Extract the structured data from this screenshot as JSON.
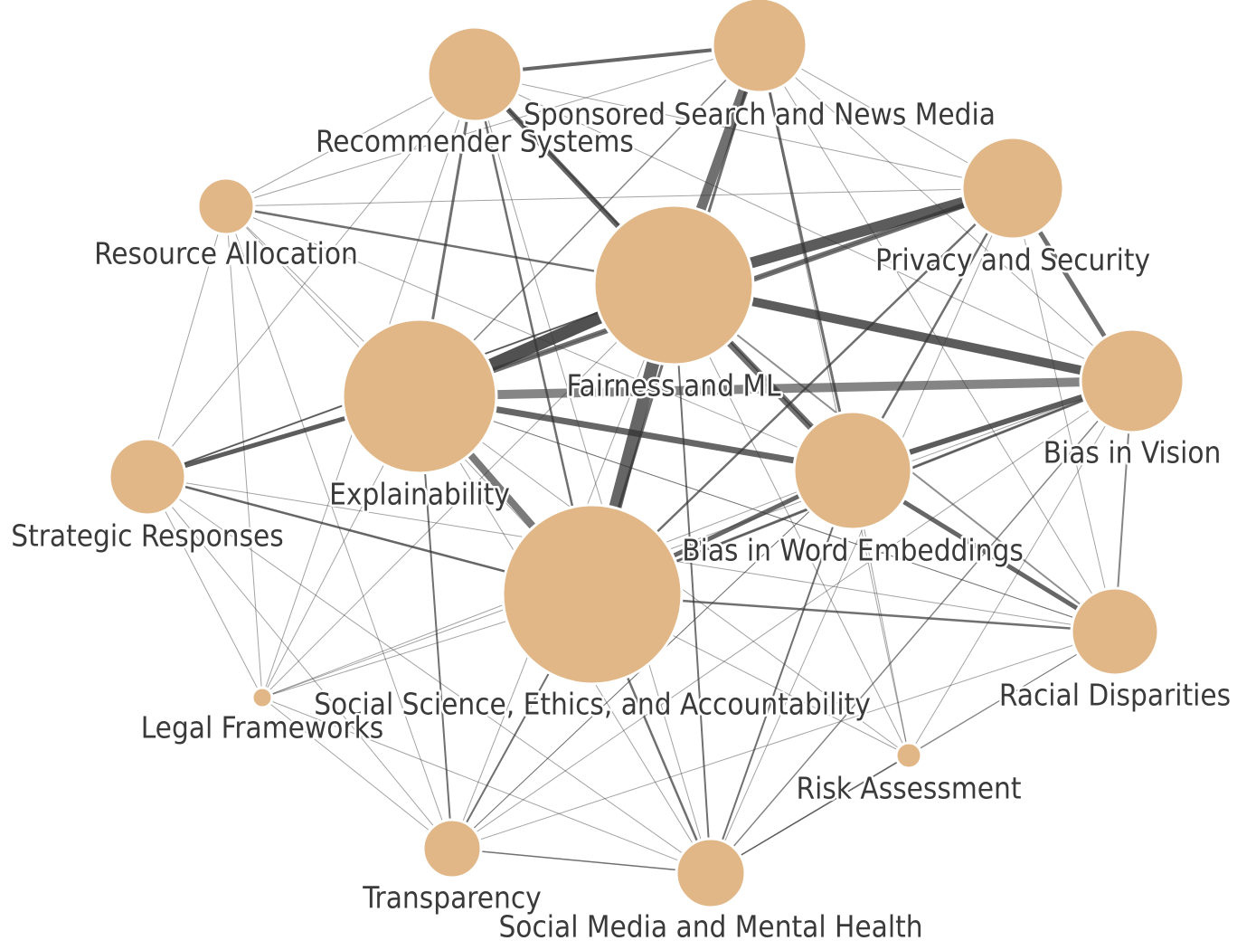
{
  "colors": {
    "node_fill": "#e2b788",
    "edge_color": "#333333",
    "background": "#ffffff"
  },
  "nodes": [
    {
      "id": "fairness",
      "label": "Fairness and ML"
    },
    {
      "id": "social",
      "label": "Social Science, Ethics, and Accountability"
    },
    {
      "id": "explain",
      "label": "Explainability"
    },
    {
      "id": "wordemb",
      "label": "Bias in Word Embeddings"
    },
    {
      "id": "vision",
      "label": "Bias in Vision"
    },
    {
      "id": "privacy",
      "label": "Privacy and Security"
    },
    {
      "id": "sponsored",
      "label": "Sponsored Search and News Media"
    },
    {
      "id": "recommender",
      "label": "Recommender Systems"
    },
    {
      "id": "resource",
      "label": "Resource Allocation"
    },
    {
      "id": "strategic",
      "label": "Strategic Responses"
    },
    {
      "id": "legal",
      "label": "Legal Frameworks"
    },
    {
      "id": "racial",
      "label": "Racial Disparities"
    },
    {
      "id": "risk",
      "label": "Risk Assessment"
    },
    {
      "id": "transparency",
      "label": "Transparency"
    },
    {
      "id": "socialmedia",
      "label": "Social Media and Mental Health"
    }
  ]
}
